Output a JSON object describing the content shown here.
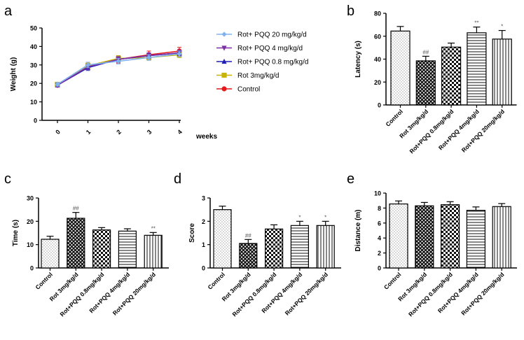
{
  "figure": {
    "panels": [
      "a",
      "b",
      "c",
      "d",
      "e"
    ]
  },
  "colors": {
    "rot_pqq_20": "#7fb2f0",
    "rot_pqq_4": "#7a2fa6",
    "rot_pqq_08": "#1f1fb8",
    "rot_3": "#c8b400",
    "control": "#e41a1c"
  },
  "chart_data": [
    {
      "id": "a",
      "type": "line",
      "xlabel": "weeks",
      "ylabel": "Weight (g)",
      "x": [
        0,
        1,
        2,
        3,
        4
      ],
      "x_ticks": [
        "0",
        "1",
        "2",
        "3",
        "4"
      ],
      "ylim": [
        0,
        50
      ],
      "y_ticks": [
        "0",
        "10",
        "20",
        "30",
        "40",
        "50"
      ],
      "series": [
        {
          "name": "Rot+ PQQ 20 mg/kg/d",
          "color_key": "rot_pqq_20",
          "marker": "diamond",
          "values": [
            19.5,
            30.0,
            32.0,
            34.0,
            36.0
          ],
          "errors": [
            1.0,
            1.5,
            1.5,
            1.5,
            1.5
          ]
        },
        {
          "name": "Rot+ PQQ 4 mg/kg/d",
          "color_key": "rot_pqq_4",
          "marker": "triangle-down",
          "values": [
            19.0,
            29.0,
            33.0,
            35.0,
            36.5
          ],
          "errors": [
            1.0,
            1.5,
            1.5,
            1.5,
            1.5
          ]
        },
        {
          "name": "Rot+ PQQ 0.8 mg/kg/d",
          "color_key": "rot_pqq_08",
          "marker": "triangle-up",
          "values": [
            19.0,
            28.5,
            33.0,
            35.0,
            36.5
          ],
          "errors": [
            1.0,
            1.5,
            1.5,
            1.5,
            1.5
          ]
        },
        {
          "name": "Rot 3mg/kg/d",
          "color_key": "rot_3",
          "marker": "square",
          "values": [
            19.5,
            29.5,
            33.5,
            34.0,
            35.5
          ],
          "errors": [
            1.0,
            1.5,
            1.5,
            1.5,
            1.5
          ]
        },
        {
          "name": "Control",
          "color_key": "control",
          "marker": "circle",
          "values": [
            19.0,
            29.5,
            33.0,
            35.5,
            37.5
          ],
          "errors": [
            1.0,
            1.5,
            2.0,
            2.0,
            2.0
          ]
        }
      ]
    },
    {
      "id": "b",
      "type": "bar",
      "ylabel": "Latency (s)",
      "ylim": [
        0,
        80
      ],
      "y_ticks": [
        "0",
        "20",
        "40",
        "60",
        "80"
      ],
      "categories": [
        "Control",
        "Rot 3mg/kg/d",
        "Rot+PQQ 0.8mg/kg/d",
        "Rot+PQQ 4mg/kg/d",
        "Rot+PQQ 20mg/kg/d"
      ],
      "values": [
        64.5,
        38.5,
        50.5,
        63.0,
        57.5
      ],
      "errors": [
        4.0,
        4.0,
        3.5,
        5.0,
        7.5
      ],
      "annotations": [
        "",
        "##",
        "",
        "**",
        "*"
      ]
    },
    {
      "id": "c",
      "type": "bar",
      "ylabel": "Time (s)",
      "ylim": [
        0,
        30
      ],
      "y_ticks": [
        "0",
        "10",
        "20",
        "30"
      ],
      "categories": [
        "Control",
        "Rot 3mg/kg/d",
        "Rot+PQQ 0.8mg/kg/d",
        "Rot+PQQ 4mg/kg/d",
        "Rot+PQQ 20mg/kg/d"
      ],
      "values": [
        12.3,
        21.3,
        16.3,
        15.8,
        14.0
      ],
      "errors": [
        1.3,
        2.5,
        1.0,
        1.0,
        1.2
      ],
      "annotations": [
        "",
        "##",
        "",
        "",
        "**"
      ]
    },
    {
      "id": "d",
      "type": "bar",
      "ylabel": "Score",
      "ylim": [
        0,
        3
      ],
      "y_ticks": [
        "0",
        "1",
        "2",
        "3"
      ],
      "categories": [
        "Control",
        "Rot 3mg/kg/d",
        "Rot+PQQ 0.8mg/kg/d",
        "Rot+PQQ 4mg/kg/d",
        "Rot+PQQ 20mg/kg/d"
      ],
      "values": [
        2.5,
        1.05,
        1.67,
        1.82,
        1.82
      ],
      "errors": [
        0.15,
        0.17,
        0.18,
        0.18,
        0.18
      ],
      "annotations": [
        "",
        "##",
        "",
        "*",
        "*"
      ]
    },
    {
      "id": "e",
      "type": "bar",
      "ylabel": "Distance (m)",
      "ylim": [
        0,
        10
      ],
      "y_ticks": [
        "0",
        "2",
        "4",
        "6",
        "8",
        "10"
      ],
      "categories": [
        "Control",
        "Rot 3mg/kg/d",
        "Rot+PQQ 0.8mg/kg/d",
        "Rot+PQQ 4mg/kg/d",
        "Rot+PQQ 20mg/kg/d"
      ],
      "values": [
        8.55,
        8.3,
        8.45,
        7.7,
        8.2
      ],
      "errors": [
        0.4,
        0.45,
        0.4,
        0.45,
        0.4
      ],
      "annotations": [
        "",
        "",
        "",
        "",
        ""
      ]
    }
  ]
}
